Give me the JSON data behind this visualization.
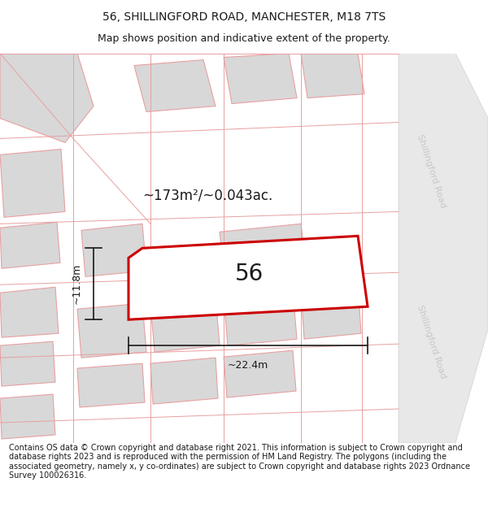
{
  "title": "56, SHILLINGFORD ROAD, MANCHESTER, M18 7TS",
  "subtitle": "Map shows position and indicative extent of the property.",
  "footer": "Contains OS data © Crown copyright and database right 2021. This information is subject to Crown copyright and database rights 2023 and is reproduced with the permission of HM Land Registry. The polygons (including the associated geometry, namely x, y co-ordinates) are subject to Crown copyright and database rights 2023 Ordnance Survey 100026316.",
  "area_label": "~173m²/~0.043ac.",
  "width_label": "~22.4m",
  "height_label": "~11.8m",
  "plot_number": "56",
  "bg_color": "#ffffff",
  "map_bg": "#ffffff",
  "road_fill": "#e8e8e8",
  "road_edge": "#d0d0d0",
  "outline_color": "#e8a0a0",
  "building_fill": "#d8d8d8",
  "main_plot_color": "#cc0000",
  "main_plot_fill": "#ffffff",
  "road_label_color": "#c8c8c8",
  "road_label": "Shillingford Road",
  "title_fontsize": 10,
  "subtitle_fontsize": 9,
  "footer_fontsize": 7,
  "annotation_fontsize": 9,
  "area_fontsize": 12
}
